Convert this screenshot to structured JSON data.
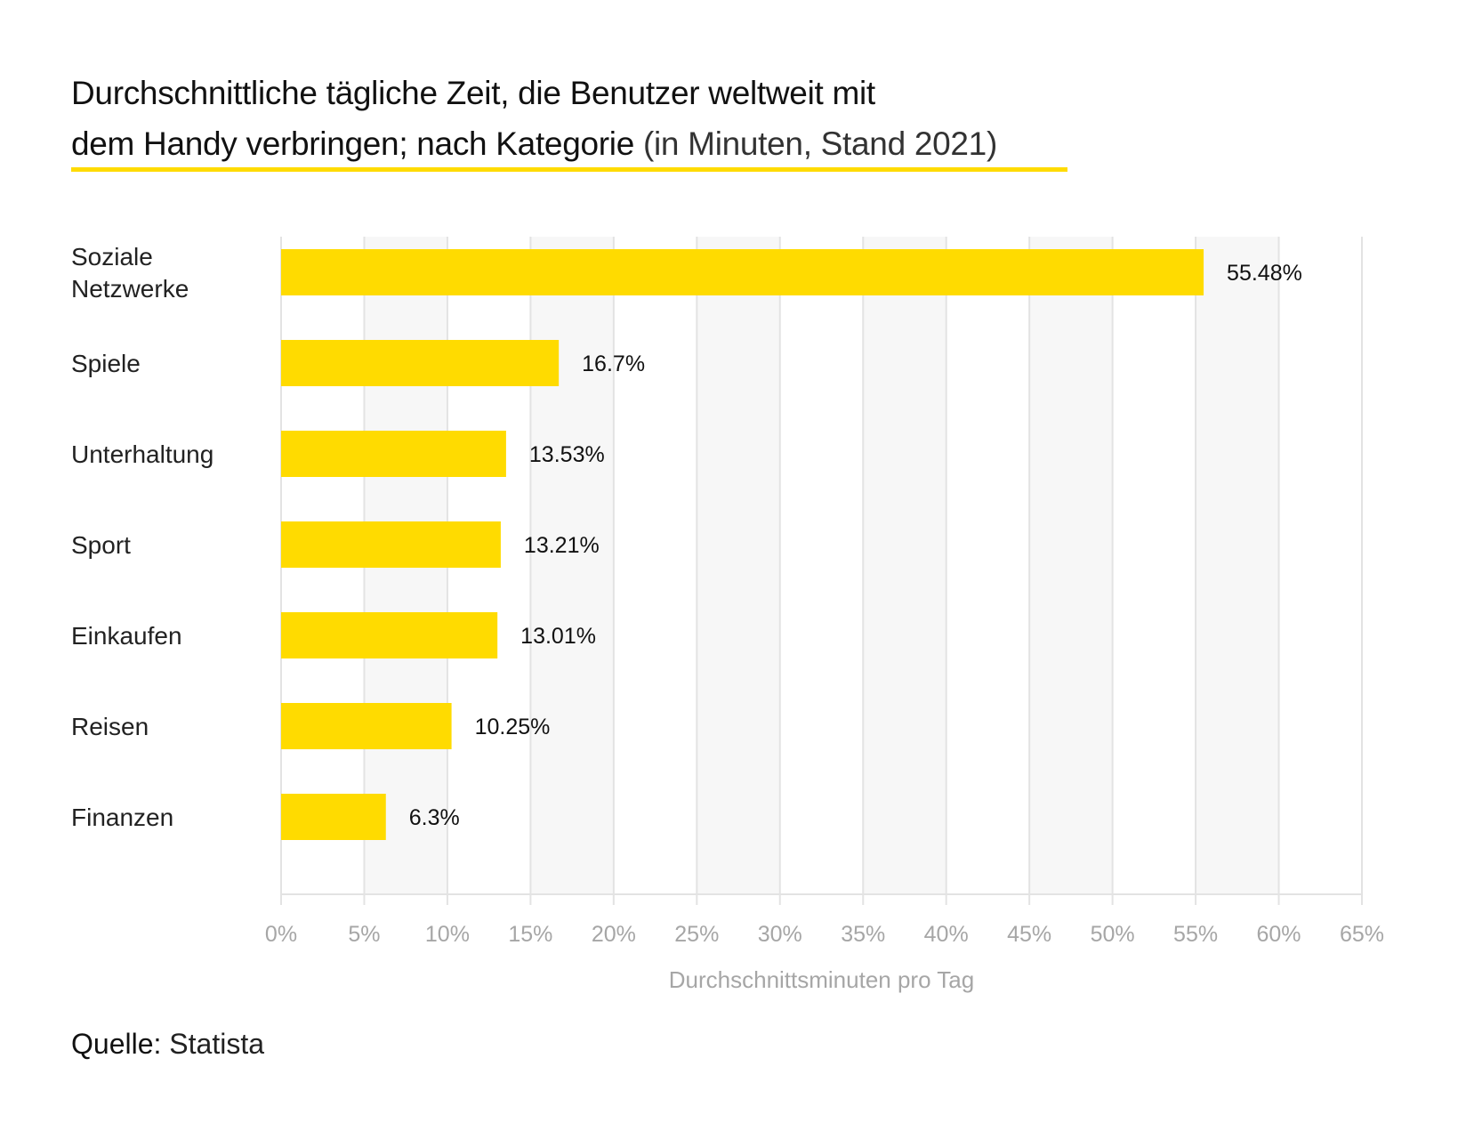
{
  "title": {
    "line1": "Durchschnittliche tägliche Zeit, die Benutzer weltweit mit",
    "line2_bold": "dem Handy verbringen; nach Kategorie",
    "line2_light": "(in Minuten, Stand 2021)"
  },
  "source": {
    "label": "Quelle:",
    "value": "Statista"
  },
  "chart_data": {
    "type": "bar",
    "orientation": "horizontal",
    "categories": [
      [
        "Soziale",
        "Netzwerke"
      ],
      [
        "Spiele"
      ],
      [
        "Unterhaltung"
      ],
      [
        "Sport"
      ],
      [
        "Einkaufen"
      ],
      [
        "Reisen"
      ],
      [
        "Finanzen"
      ]
    ],
    "values": [
      55.48,
      16.7,
      13.53,
      13.21,
      13.01,
      10.25,
      6.3
    ],
    "data_labels": [
      "55.48%",
      "16.7%",
      "13.53%",
      "13.21%",
      "13.01%",
      "10.25%",
      "6.3%"
    ],
    "xlabel": "Durchschnittsminuten pro Tag",
    "xlim": [
      0,
      65
    ],
    "xticks": [
      0,
      5,
      10,
      15,
      20,
      25,
      30,
      35,
      40,
      45,
      50,
      55,
      60,
      65
    ],
    "xtick_labels": [
      "0%",
      "5%",
      "10%",
      "15%",
      "20%",
      "25%",
      "30%",
      "35%",
      "40%",
      "45%",
      "50%",
      "55%",
      "60%",
      "65%"
    ],
    "grid": true,
    "alternating_bands": true,
    "bar_color": "#ffdb00",
    "band_color": "#f7f7f7",
    "grid_color": "#e3e3e3"
  }
}
